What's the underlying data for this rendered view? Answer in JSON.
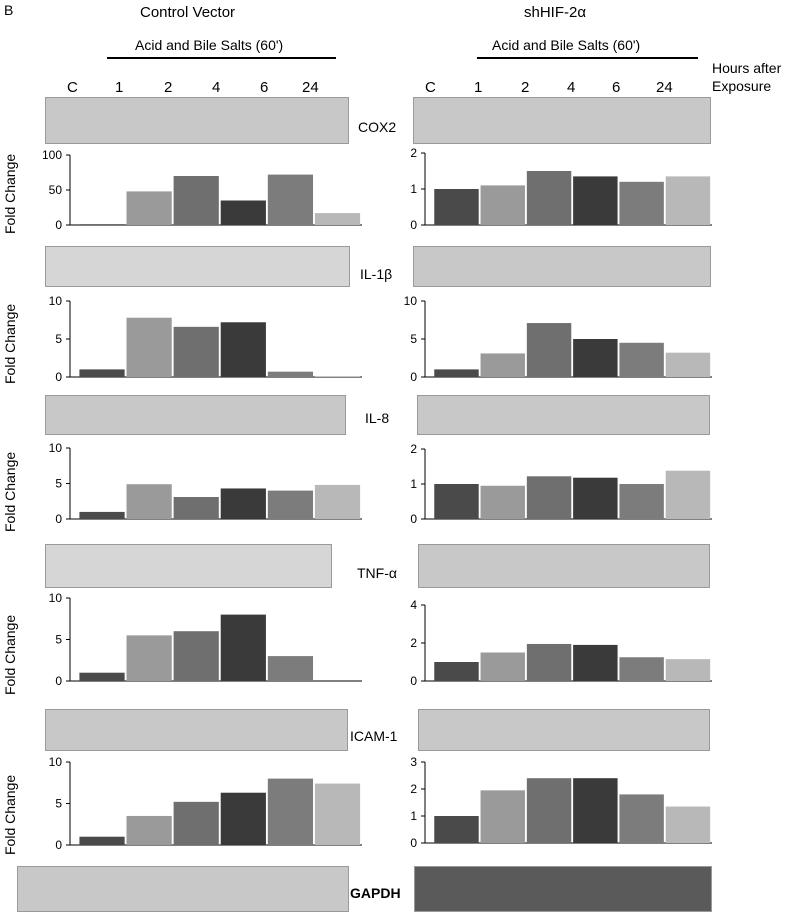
{
  "panel_letter": "B",
  "left_group_title": "Control Vector",
  "right_group_title": "shHIF-2α",
  "treatment_label": "Acid and Bile Salts (60')",
  "time_header_line1": "Hours after",
  "time_header_line2": "Exposure",
  "lanes": [
    "C",
    "1",
    "2",
    "4",
    "6",
    "24"
  ],
  "y_label": "Fold Change",
  "genes": [
    "COX2",
    "IL-1β",
    "IL-8",
    "TNF-α",
    "ICAM-1",
    "GAPDH"
  ],
  "bar_colors": [
    "#4a4a4a",
    "#9a9a9a",
    "#6f6f6f",
    "#3a3a3a",
    "#7c7c7c",
    "#b8b8b8"
  ],
  "chart_data": [
    {
      "type": "bar",
      "panel": "Control Vector",
      "gene": "COX2",
      "categories": [
        "C",
        "1",
        "2",
        "4",
        "6",
        "24"
      ],
      "values": [
        1,
        48,
        70,
        35,
        72,
        17
      ],
      "ylim": [
        0,
        100
      ],
      "yticks": [
        0,
        50,
        100
      ],
      "ylabel": "Fold Change"
    },
    {
      "type": "bar",
      "panel": "shHIF-2α",
      "gene": "COX2",
      "categories": [
        "C",
        "1",
        "2",
        "4",
        "6",
        "24"
      ],
      "values": [
        1,
        1.1,
        1.5,
        1.35,
        1.2,
        1.35
      ],
      "ylim": [
        0,
        2
      ],
      "yticks": [
        0,
        1,
        2
      ],
      "ylabel": ""
    },
    {
      "type": "bar",
      "panel": "Control Vector",
      "gene": "IL-1β",
      "categories": [
        "C",
        "1",
        "2",
        "4",
        "6",
        "24"
      ],
      "values": [
        1,
        7.8,
        6.6,
        7.2,
        0.7,
        0
      ],
      "ylim": [
        0,
        10
      ],
      "yticks": [
        0,
        5,
        10
      ],
      "ylabel": "Fold Change"
    },
    {
      "type": "bar",
      "panel": "shHIF-2α",
      "gene": "IL-1β",
      "categories": [
        "C",
        "1",
        "2",
        "4",
        "6",
        "24"
      ],
      "values": [
        1,
        3.1,
        7.1,
        5.0,
        4.5,
        3.2
      ],
      "ylim": [
        0,
        10
      ],
      "yticks": [
        0,
        5,
        10
      ],
      "ylabel": ""
    },
    {
      "type": "bar",
      "panel": "Control Vector",
      "gene": "IL-8",
      "categories": [
        "C",
        "1",
        "2",
        "4",
        "6",
        "24"
      ],
      "values": [
        1,
        4.9,
        3.1,
        4.3,
        4.0,
        4.8
      ],
      "ylim": [
        0,
        10
      ],
      "yticks": [
        0,
        5,
        10
      ],
      "ylabel": "Fold Change"
    },
    {
      "type": "bar",
      "panel": "shHIF-2α",
      "gene": "IL-8",
      "categories": [
        "C",
        "1",
        "2",
        "4",
        "6",
        "24"
      ],
      "values": [
        1,
        0.95,
        1.22,
        1.18,
        1.0,
        1.38
      ],
      "ylim": [
        0,
        2
      ],
      "yticks": [
        0,
        1,
        2
      ],
      "ylabel": ""
    },
    {
      "type": "bar",
      "panel": "Control Vector",
      "gene": "TNF-α",
      "categories": [
        "C",
        "1",
        "2",
        "4",
        "6",
        "24"
      ],
      "values": [
        1,
        5.5,
        6.0,
        8.0,
        3.0,
        null
      ],
      "ylim": [
        0,
        10
      ],
      "yticks": [
        0,
        5,
        10
      ],
      "ylabel": "Fold Change"
    },
    {
      "type": "bar",
      "panel": "shHIF-2α",
      "gene": "TNF-α",
      "categories": [
        "C",
        "1",
        "2",
        "4",
        "6",
        "24"
      ],
      "values": [
        1,
        1.5,
        1.95,
        1.9,
        1.25,
        1.15
      ],
      "ylim": [
        0,
        4
      ],
      "yticks": [
        0,
        2,
        4
      ],
      "ylabel": ""
    },
    {
      "type": "bar",
      "panel": "Control Vector",
      "gene": "ICAM-1",
      "categories": [
        "C",
        "1",
        "2",
        "4",
        "6",
        "24"
      ],
      "values": [
        1,
        3.5,
        5.2,
        6.3,
        8.0,
        7.4
      ],
      "ylim": [
        0,
        10
      ],
      "yticks": [
        0,
        5,
        10
      ],
      "ylabel": "Fold Change"
    },
    {
      "type": "bar",
      "panel": "shHIF-2α",
      "gene": "ICAM-1",
      "categories": [
        "C",
        "1",
        "2",
        "4",
        "6",
        "24"
      ],
      "values": [
        1,
        1.95,
        2.4,
        2.4,
        1.8,
        1.35
      ],
      "ylim": [
        0,
        3
      ],
      "yticks": [
        0,
        1,
        2,
        3
      ],
      "ylabel": ""
    }
  ]
}
